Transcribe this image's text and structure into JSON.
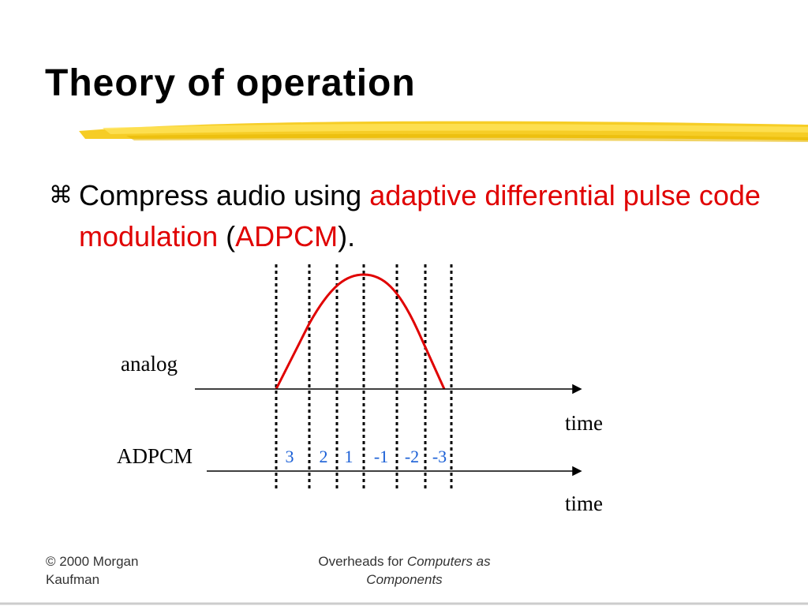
{
  "header": {
    "title": "Theory of operation"
  },
  "bullet": {
    "symbol": "⌘",
    "text_before": "Compress audio using ",
    "term": "adaptive differential pulse code modulation",
    "open": " (",
    "acronym": "ADPCM",
    "close": ")."
  },
  "diagram": {
    "analog_label": "analog",
    "analog_axis_label": "time",
    "adpcm_label": "ADPCM",
    "adpcm_axis_label": "time",
    "codes": [
      3,
      2,
      1,
      -1,
      -2,
      -3
    ]
  },
  "footer": {
    "copyright": "© 2000 Morgan Kaufman",
    "overheads_prefix": "Overheads for ",
    "book_title": "Computers as Components"
  }
}
